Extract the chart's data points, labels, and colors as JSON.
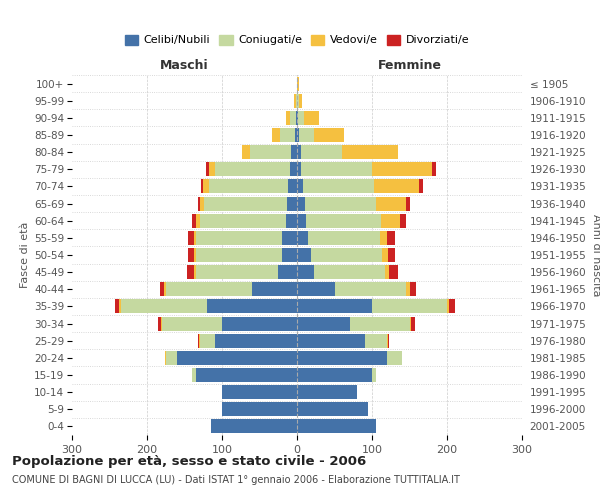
{
  "age_groups": [
    "0-4",
    "5-9",
    "10-14",
    "15-19",
    "20-24",
    "25-29",
    "30-34",
    "35-39",
    "40-44",
    "45-49",
    "50-54",
    "55-59",
    "60-64",
    "65-69",
    "70-74",
    "75-79",
    "80-84",
    "85-89",
    "90-94",
    "95-99",
    "100+"
  ],
  "birth_years": [
    "2001-2005",
    "1996-2000",
    "1991-1995",
    "1986-1990",
    "1981-1985",
    "1976-1980",
    "1971-1975",
    "1966-1970",
    "1961-1965",
    "1956-1960",
    "1951-1955",
    "1946-1950",
    "1941-1945",
    "1936-1940",
    "1931-1935",
    "1926-1930",
    "1921-1925",
    "1916-1920",
    "1911-1915",
    "1906-1910",
    "≤ 1905"
  ],
  "male": {
    "celibi": [
      115,
      100,
      100,
      135,
      160,
      110,
      100,
      120,
      60,
      25,
      20,
      20,
      15,
      14,
      12,
      10,
      8,
      3,
      2,
      0,
      0
    ],
    "coniugati": [
      0,
      0,
      0,
      5,
      15,
      20,
      80,
      115,
      115,
      110,
      115,
      115,
      115,
      110,
      105,
      100,
      55,
      20,
      8,
      2,
      0
    ],
    "vedovi": [
      0,
      0,
      0,
      0,
      1,
      1,
      1,
      2,
      2,
      2,
      2,
      3,
      5,
      5,
      8,
      8,
      10,
      10,
      5,
      2,
      0
    ],
    "divorziati": [
      0,
      0,
      0,
      0,
      0,
      1,
      5,
      6,
      6,
      10,
      8,
      8,
      5,
      3,
      3,
      3,
      0,
      0,
      0,
      0,
      0
    ]
  },
  "female": {
    "nubili": [
      105,
      95,
      80,
      100,
      120,
      90,
      70,
      100,
      50,
      22,
      18,
      15,
      12,
      10,
      8,
      5,
      5,
      3,
      1,
      0,
      0
    ],
    "coniugate": [
      0,
      0,
      0,
      5,
      20,
      30,
      80,
      100,
      95,
      95,
      95,
      95,
      100,
      95,
      95,
      95,
      55,
      20,
      8,
      2,
      0
    ],
    "vedove": [
      0,
      0,
      0,
      0,
      0,
      1,
      2,
      3,
      5,
      5,
      8,
      10,
      25,
      40,
      60,
      80,
      75,
      40,
      20,
      5,
      2
    ],
    "divorziate": [
      0,
      0,
      0,
      0,
      0,
      1,
      5,
      8,
      8,
      12,
      10,
      10,
      8,
      5,
      5,
      5,
      0,
      0,
      0,
      0,
      0
    ]
  },
  "colors": {
    "celibi": "#4472a8",
    "coniugati": "#c5d9a0",
    "vedovi": "#f5c040",
    "divorziati": "#cc2222"
  },
  "title": "Popolazione per età, sesso e stato civile - 2006",
  "subtitle": "COMUNE DI BAGNI DI LUCCA (LU) - Dati ISTAT 1° gennaio 2006 - Elaborazione TUTTITALIA.IT",
  "xlabel_left": "Maschi",
  "xlabel_right": "Femmine",
  "ylabel_left": "Fasce di età",
  "ylabel_right": "Anni di nascita",
  "xlim": 300,
  "bg_color": "#ffffff",
  "plot_bg": "#ffffff",
  "grid_color": "#cccccc"
}
